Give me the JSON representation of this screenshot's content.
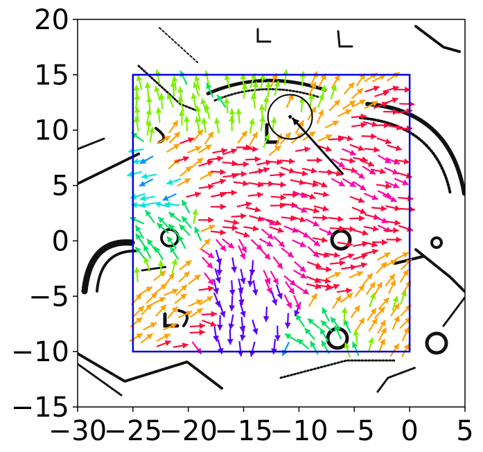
{
  "chart_data": {
    "type": "quiver",
    "title": "",
    "xlabel": "",
    "ylabel": "",
    "xlim": [
      -30,
      5
    ],
    "ylim": [
      -15,
      20
    ],
    "x_ticks": [
      -30,
      -25,
      -20,
      -15,
      -10,
      -5,
      0,
      5
    ],
    "y_ticks": [
      20,
      15,
      10,
      5,
      0,
      -5,
      -10,
      -15
    ],
    "x_tick_labels": [
      "−30",
      "−25",
      "−20",
      "−15",
      "−10",
      "−5",
      "0",
      "5"
    ],
    "y_tick_labels": [
      "20",
      "15",
      "10",
      "5",
      "0",
      "−5",
      "−10",
      "−15"
    ],
    "grid": false,
    "region": {
      "x": [
        -25,
        0
      ],
      "y": [
        -10,
        15
      ],
      "color": "#0000dd"
    },
    "robot": {
      "center": [
        -10.8,
        11.2
      ],
      "radius": 2.0,
      "heading_from": [
        -6,
        6
      ],
      "heading_to": [
        -10.6,
        11.1
      ]
    },
    "flow_colors": {
      "north": "#7cf000",
      "northwest": "#00e060",
      "west": "#00e8d8",
      "southwest": "#0a8cff",
      "south": "#5a00f5",
      "southeast": "#ff00a8",
      "east": "#ff0a3a",
      "northeast": "#ffa000"
    },
    "flow_field": [
      {
        "x": -14,
        "y": 11,
        "dx": 0.0,
        "dy": 1.0
      },
      {
        "x": -18,
        "y": 13,
        "dx": -0.4,
        "dy": 1.0
      },
      {
        "x": -11,
        "y": 13,
        "dx": 0.3,
        "dy": 1.0
      },
      {
        "x": -20,
        "y": 7,
        "dx": 0.9,
        "dy": 0.5
      },
      {
        "x": -23,
        "y": 5,
        "dx": -1.0,
        "dy": -0.4
      },
      {
        "x": -15,
        "y": 7,
        "dx": 1.0,
        "dy": 0.1
      },
      {
        "x": -10,
        "y": 5,
        "dx": 1.0,
        "dy": -0.2
      },
      {
        "x": -5,
        "y": 5,
        "dx": 1.0,
        "dy": -0.4
      },
      {
        "x": -17,
        "y": 4,
        "dx": 1.0,
        "dy": 0.0
      },
      {
        "x": -8,
        "y": 3,
        "dx": 1.0,
        "dy": -0.3
      },
      {
        "x": -3,
        "y": 2,
        "dx": 1.0,
        "dy": -0.2
      },
      {
        "x": -22,
        "y": 1,
        "dx": -0.6,
        "dy": 0.8
      },
      {
        "x": -16,
        "y": -4,
        "dx": 0.0,
        "dy": -1.0
      },
      {
        "x": -13,
        "y": -6,
        "dx": 0.2,
        "dy": -1.0
      },
      {
        "x": -10,
        "y": -2,
        "dx": 0.8,
        "dy": -0.6
      },
      {
        "x": -6,
        "y": -3,
        "dx": 1.0,
        "dy": 0.2
      },
      {
        "x": -3,
        "y": -5,
        "dx": 0.5,
        "dy": 0.9
      },
      {
        "x": -20,
        "y": -5,
        "dx": 0.8,
        "dy": 0.6
      },
      {
        "x": -15,
        "y": -9,
        "dx": 0.0,
        "dy": -1.0
      },
      {
        "x": -8,
        "y": -8,
        "dx": -0.6,
        "dy": 0.8
      }
    ]
  }
}
